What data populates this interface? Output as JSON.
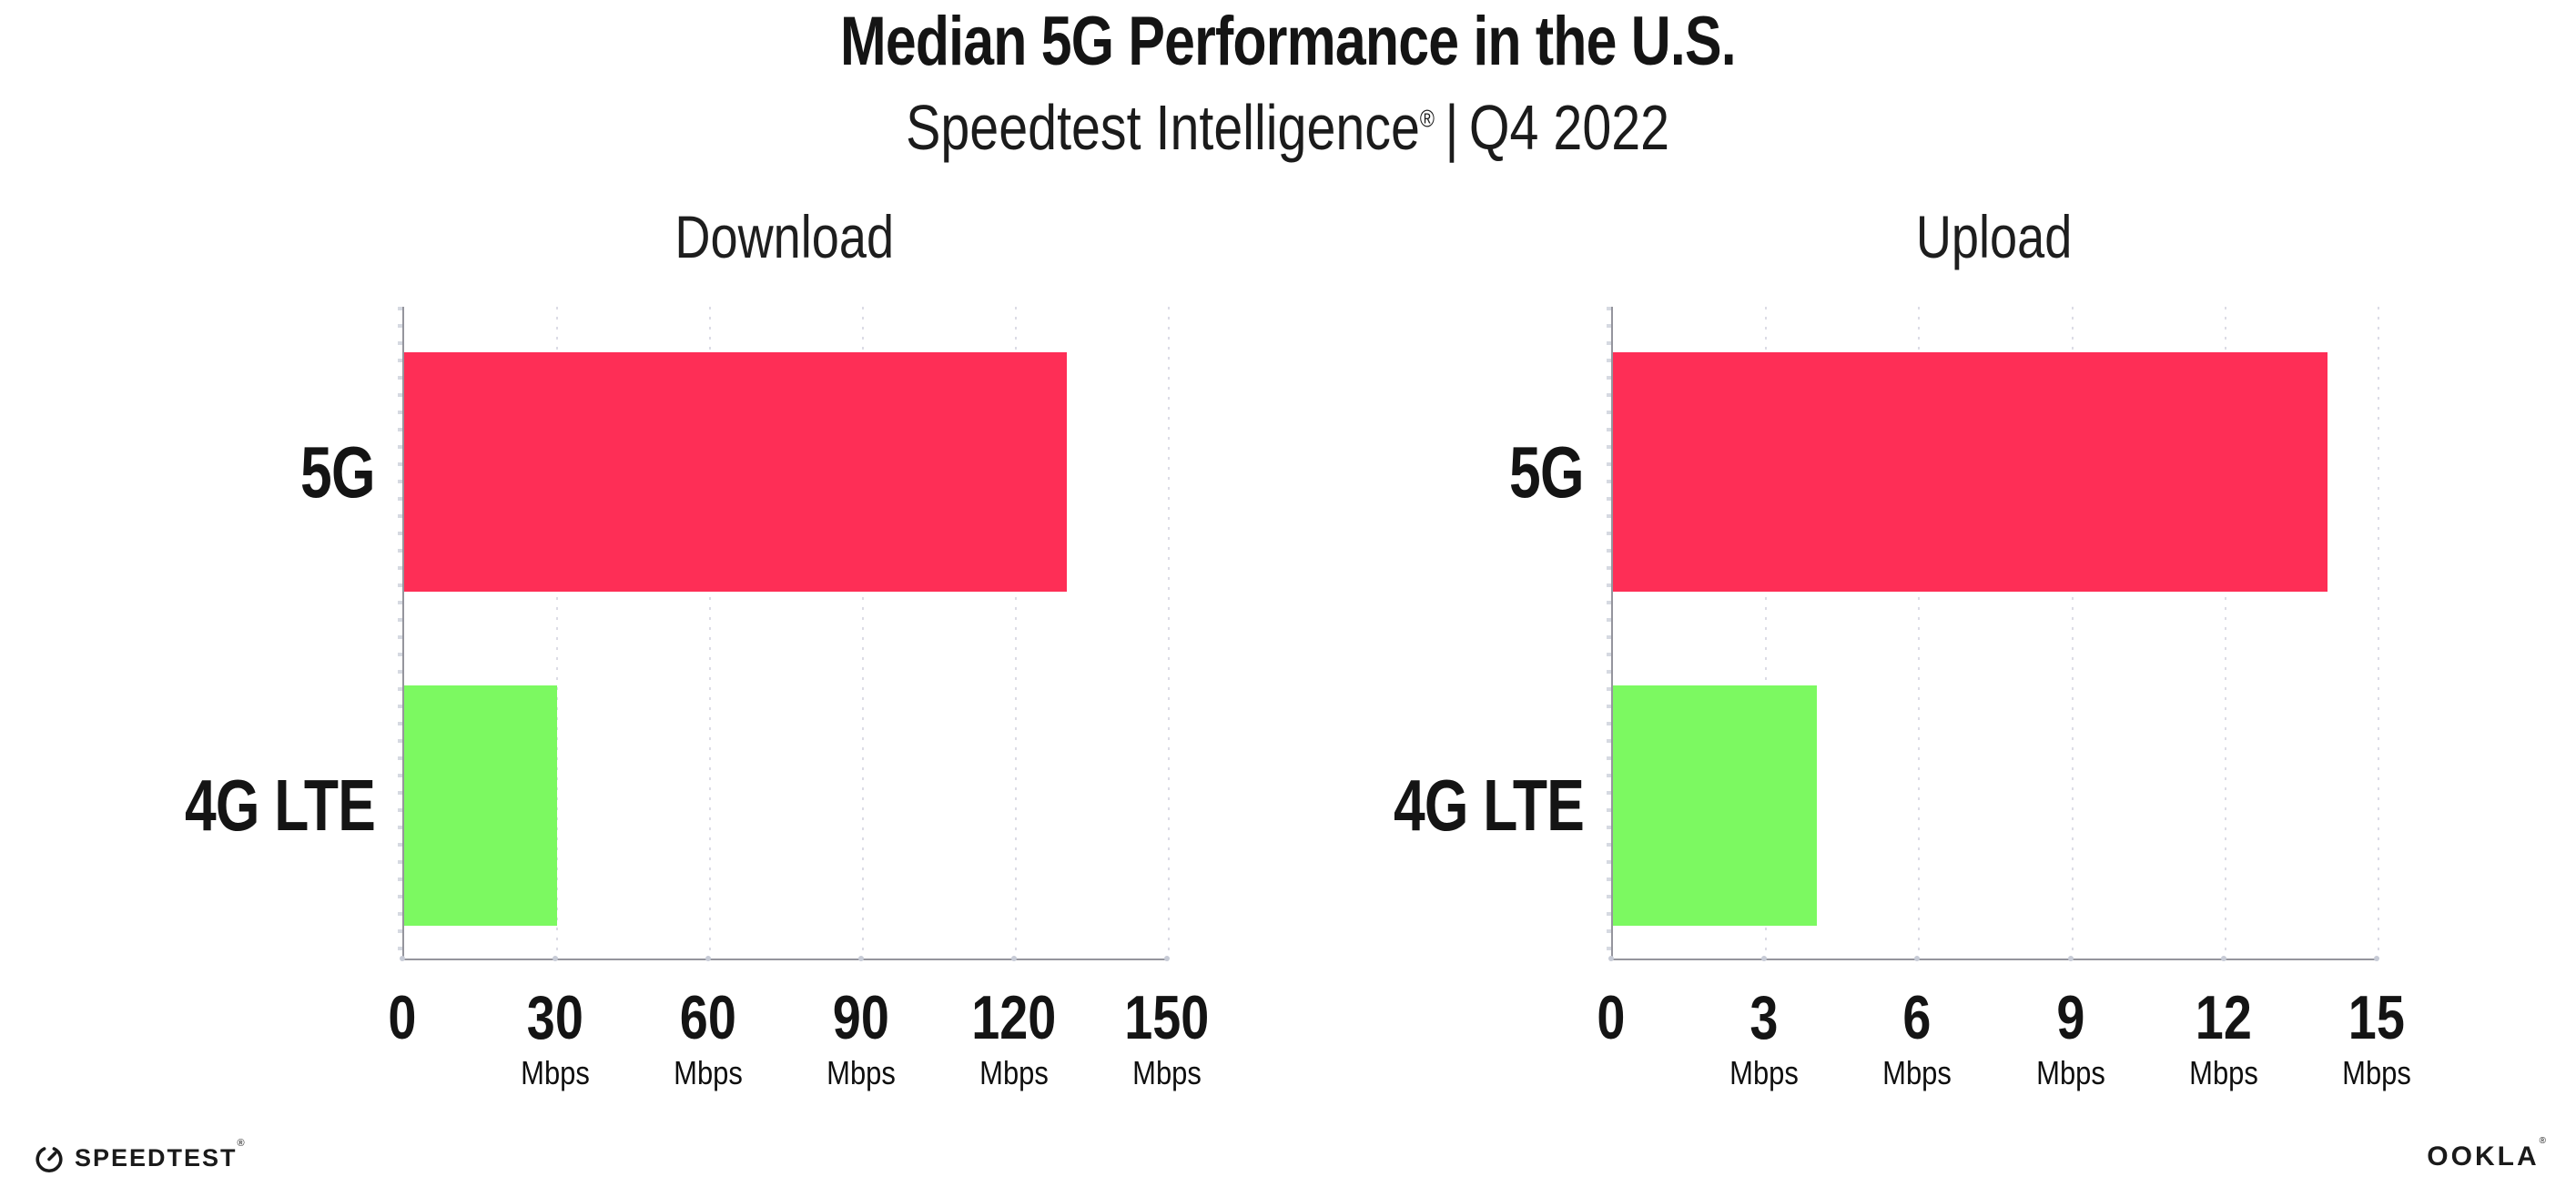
{
  "header": {
    "title": "Median 5G Performance in the U.S.",
    "subtitle_brand": "Speedtest Intelligence",
    "registered_mark": "®",
    "separator": "|",
    "period": "Q4 2022"
  },
  "chart_data": [
    {
      "type": "bar",
      "orientation": "horizontal",
      "title": "Download",
      "categories": [
        "5G",
        "4G LTE"
      ],
      "values": [
        130,
        30
      ],
      "unit": "Mbps",
      "xlim": [
        0,
        150
      ],
      "xticks": [
        0,
        30,
        60,
        90,
        120,
        150
      ],
      "ticks": [
        {
          "label": "0",
          "unit": ""
        },
        {
          "label": "30",
          "unit": "Mbps"
        },
        {
          "label": "60",
          "unit": "Mbps"
        },
        {
          "label": "90",
          "unit": "Mbps"
        },
        {
          "label": "120",
          "unit": "Mbps"
        },
        {
          "label": "150",
          "unit": "Mbps"
        }
      ],
      "bar_colors": [
        "#FE2E56",
        "#7CF961"
      ],
      "grid": "dotted-vertical",
      "legend": "none"
    },
    {
      "type": "bar",
      "orientation": "horizontal",
      "title": "Upload",
      "categories": [
        "5G",
        "4G LTE"
      ],
      "values": [
        14,
        4
      ],
      "unit": "Mbps",
      "xlim": [
        0,
        15
      ],
      "xticks": [
        0,
        3,
        6,
        9,
        12,
        15
      ],
      "ticks": [
        {
          "label": "0",
          "unit": ""
        },
        {
          "label": "3",
          "unit": "Mbps"
        },
        {
          "label": "6",
          "unit": "Mbps"
        },
        {
          "label": "9",
          "unit": "Mbps"
        },
        {
          "label": "12",
          "unit": "Mbps"
        },
        {
          "label": "15",
          "unit": "Mbps"
        }
      ],
      "bar_colors": [
        "#FE2E56",
        "#7CF961"
      ],
      "grid": "dotted-vertical",
      "legend": "none"
    }
  ],
  "colors": {
    "bar_5g": "#FE2E56",
    "bar_4g_lte": "#7CF961",
    "axis": "#95959D",
    "gridline": "#DCDCE6",
    "text": "#141414"
  },
  "footer": {
    "speedtest_label": "SPEEDTEST",
    "speedtest_mark": "®",
    "ookla_label": "OOKLA",
    "ookla_mark": "®"
  }
}
